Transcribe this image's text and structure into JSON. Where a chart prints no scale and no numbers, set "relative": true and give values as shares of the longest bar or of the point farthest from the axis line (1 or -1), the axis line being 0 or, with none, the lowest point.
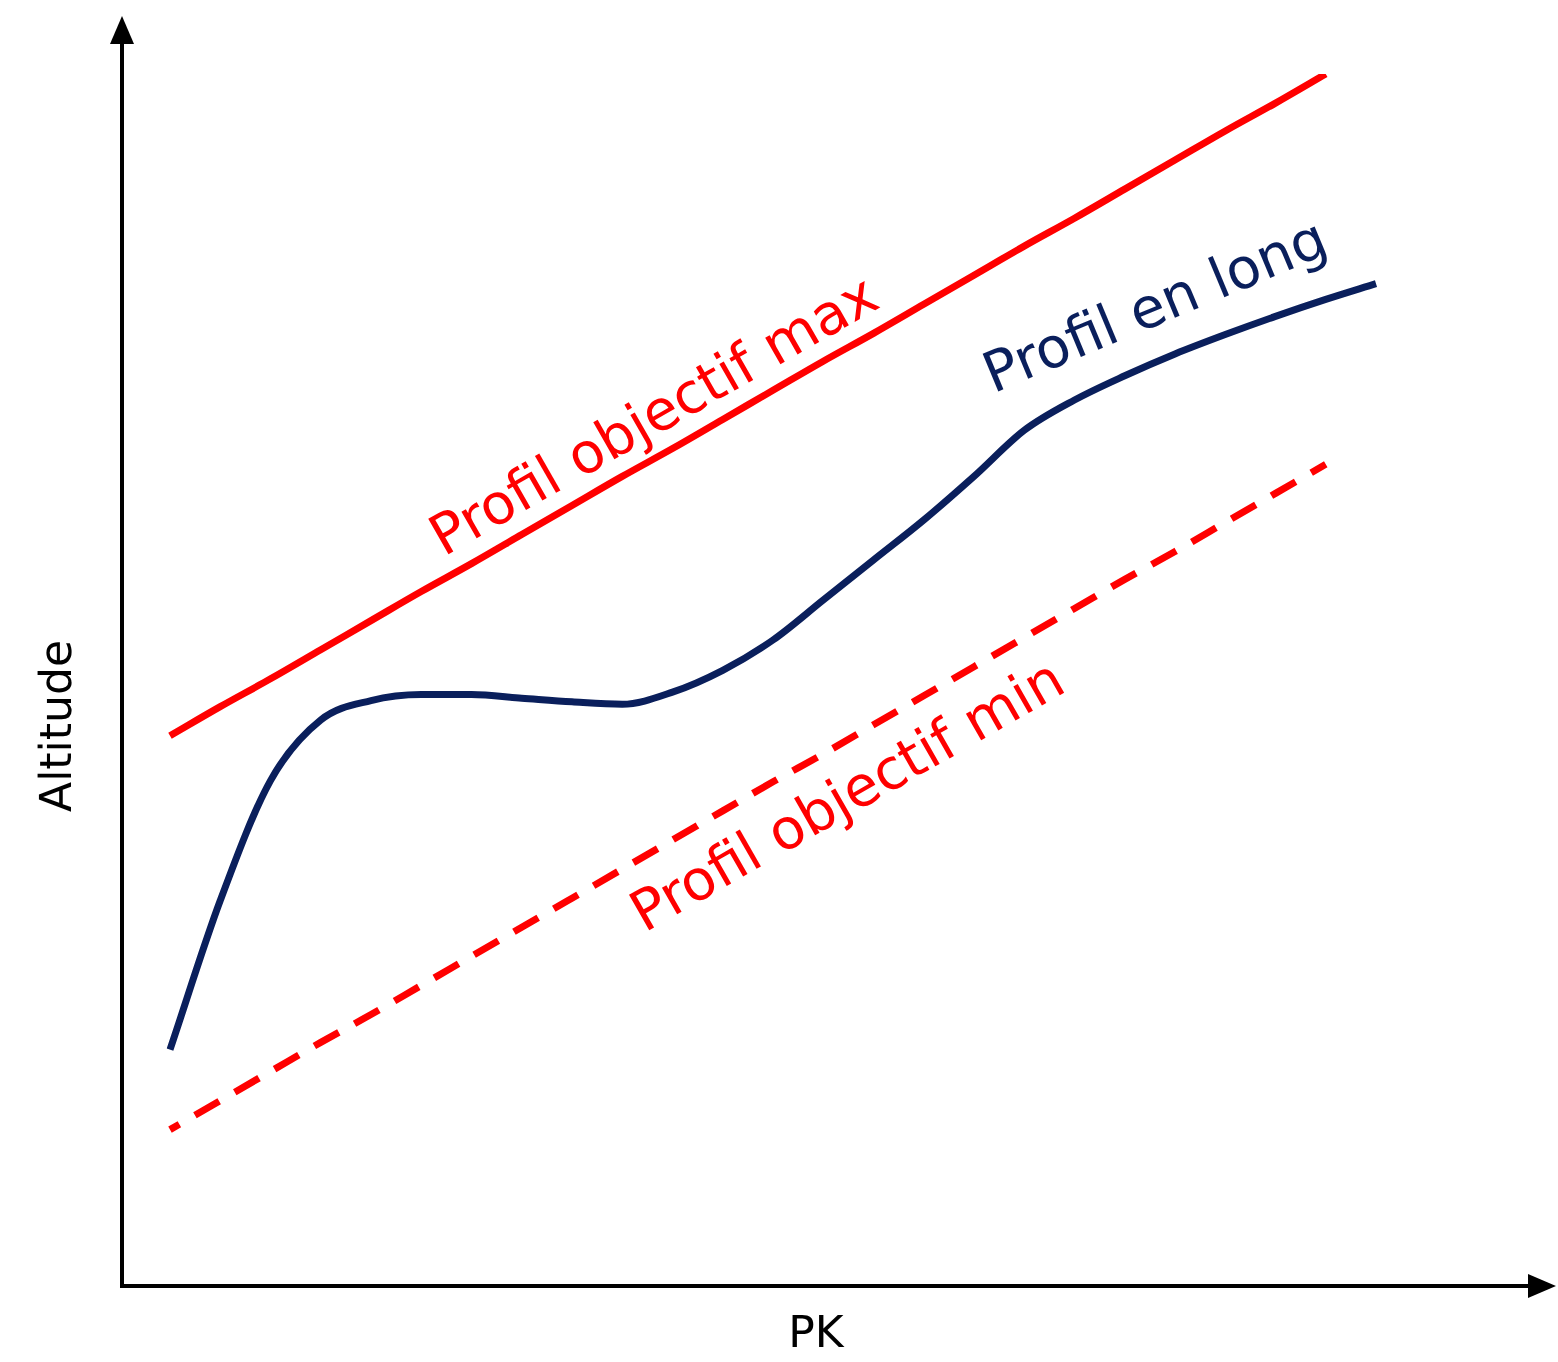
{
  "chart_data": {
    "type": "line",
    "relative": true,
    "xlabel": "PK",
    "ylabel": "Altitude",
    "tick_labels": false,
    "legend": false,
    "marker": "none",
    "categories": [
      null,
      null,
      null,
      null,
      null,
      null,
      null,
      null,
      null,
      null,
      null,
      null,
      null,
      null,
      null,
      null,
      null,
      null,
      null,
      null,
      null,
      null,
      null,
      null,
      null
    ],
    "series": [
      {
        "name": "Profil objectif max",
        "color": "#ff0000",
        "line_style": "solid",
        "values": [
          0.454,
          0.478,
          0.501,
          0.525,
          0.549,
          0.573,
          0.596,
          0.62,
          0.644,
          0.668,
          0.691,
          0.715,
          0.739,
          0.763,
          0.786,
          0.81,
          0.834,
          0.858,
          0.881,
          0.905,
          0.929,
          0.953,
          0.976,
          1,
          null
        ]
      },
      {
        "name": "Profil en long",
        "color": "#0a1f5c",
        "line_style": "solid",
        "values": [
          0.195,
          0.318,
          0.417,
          0.467,
          0.483,
          0.488,
          0.488,
          0.485,
          0.482,
          0.48,
          0.49,
          0.508,
          0.533,
          0.566,
          0.599,
          0.632,
          0.668,
          0.706,
          0.731,
          0.751,
          0.769,
          0.785,
          0.8,
          0.814,
          0.827
        ]
      },
      {
        "name": "Profil objectif min",
        "color": "#ff0000",
        "line_style": "dashed",
        "values": [
          0.129,
          0.153,
          0.177,
          0.201,
          0.224,
          0.248,
          0.272,
          0.296,
          0.32,
          0.344,
          0.368,
          0.392,
          0.416,
          0.439,
          0.463,
          0.487,
          0.511,
          0.535,
          0.559,
          0.583,
          0.606,
          0.63,
          0.654,
          0.678,
          null
        ]
      }
    ]
  }
}
